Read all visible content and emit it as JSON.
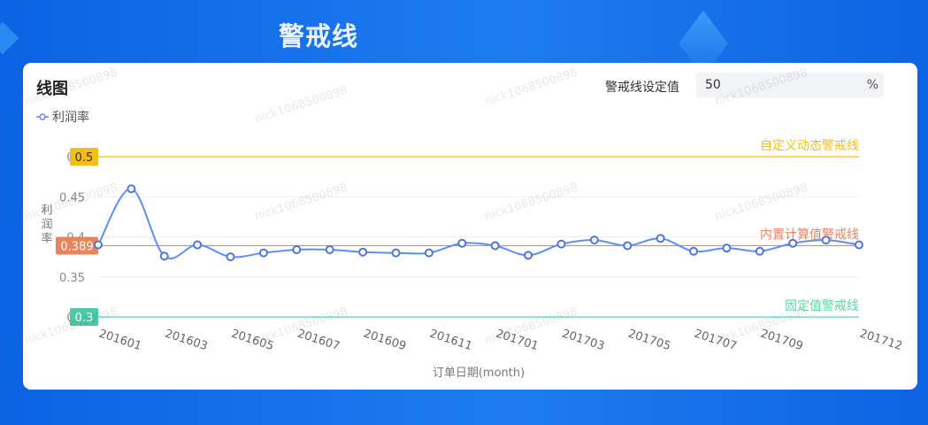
{
  "page": {
    "title": "警戒线"
  },
  "card": {
    "title": "线图",
    "setting_label": "警戒线设定值",
    "setting_value": "50",
    "setting_unit": "%",
    "watermark": "nick1068500898"
  },
  "colors": {
    "series": "#5b8ff9",
    "custom_line": "#f6bd16",
    "builtin_line": "#e8855f",
    "fixed_line": "#5ad8a6",
    "builtin_badge": "#e8855f",
    "fixed_badge": "#4cc9a5",
    "custom_badge": "#f6bd16"
  },
  "chart_data": {
    "type": "line",
    "xlabel": "订单日期(month)",
    "ylabel": "利润率",
    "legend": "利润率",
    "legend_position": "top-left",
    "ylim": [
      0.3,
      0.5
    ],
    "y_ticks": [
      "0.5",
      "0.45",
      "0.4",
      "0.35",
      "0.3"
    ],
    "x_tick_labels": [
      "201601",
      "201603",
      "201605",
      "201607",
      "201609",
      "201611",
      "201701",
      "201703",
      "201705",
      "201707",
      "201709",
      "201712"
    ],
    "categories": [
      "201601",
      "201602",
      "201603",
      "201604",
      "201605",
      "201606",
      "201607",
      "201608",
      "201609",
      "201610",
      "201611",
      "201612",
      "201701",
      "201702",
      "201703",
      "201704",
      "201705",
      "201706",
      "201707",
      "201708",
      "201709",
      "201710",
      "201711",
      "201712"
    ],
    "series": [
      {
        "name": "利润率",
        "values": [
          0.39,
          0.46,
          0.376,
          0.39,
          0.375,
          0.38,
          0.384,
          0.384,
          0.381,
          0.38,
          0.38,
          0.392,
          0.389,
          0.377,
          0.391,
          0.396,
          0.389,
          0.398,
          0.382,
          0.386,
          0.382,
          0.392,
          0.396,
          0.39
        ]
      }
    ],
    "reference_lines": [
      {
        "label": "自定义动态警戒线",
        "value": 0.5,
        "badge": "0.5",
        "color_key": "custom_line"
      },
      {
        "label": "内置计算值警戒线",
        "value": 0.389,
        "badge": "0.389",
        "color_key": "builtin_line"
      },
      {
        "label": "固定值警戒线",
        "value": 0.3,
        "badge": "0.3",
        "color_key": "fixed_line"
      }
    ],
    "grid": true
  }
}
